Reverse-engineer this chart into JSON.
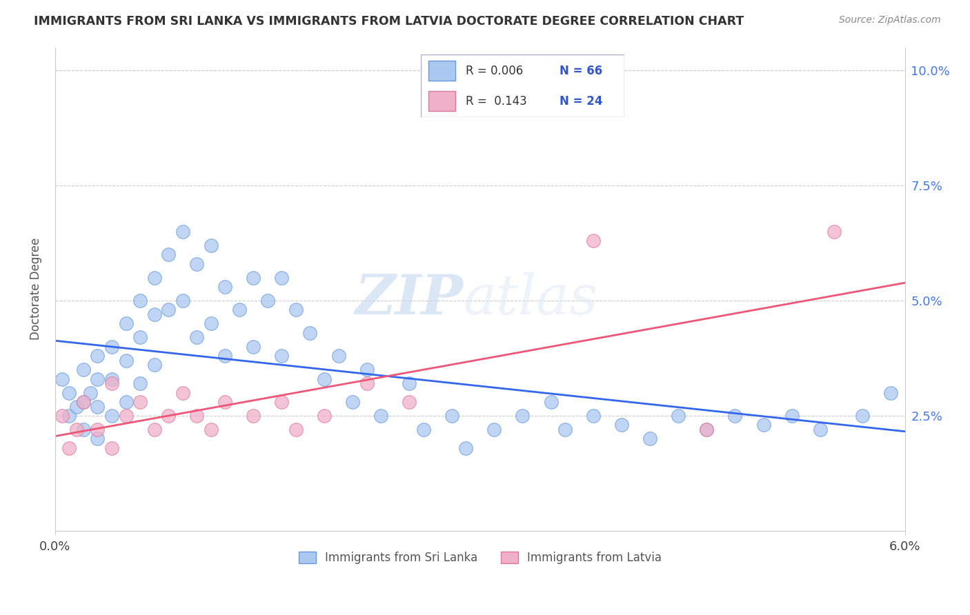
{
  "title": "IMMIGRANTS FROM SRI LANKA VS IMMIGRANTS FROM LATVIA DOCTORATE DEGREE CORRELATION CHART",
  "source_text": "Source: ZipAtlas.com",
  "ylabel": "Doctorate Degree",
  "ytick_values": [
    0.025,
    0.05,
    0.075,
    0.1
  ],
  "ytick_labels": [
    "2.5%",
    "5.0%",
    "7.5%",
    "10.0%"
  ],
  "xlim": [
    0.0,
    0.06
  ],
  "ylim": [
    0.0,
    0.105
  ],
  "sri_lanka_color": "#aac8f0",
  "sri_lanka_edge": "#6699dd",
  "latvia_color": "#f0b0c8",
  "latvia_edge": "#dd7799",
  "line_sri_lanka": "#3366ee",
  "line_latvia": "#ee5577",
  "R_sri_lanka": 0.006,
  "N_sri_lanka": 66,
  "R_latvia": 0.143,
  "N_latvia": 24,
  "watermark_zip": "ZIP",
  "watermark_atlas": "atlas",
  "sri_lanka_x": [
    0.0005,
    0.001,
    0.001,
    0.0015,
    0.002,
    0.002,
    0.002,
    0.0025,
    0.003,
    0.003,
    0.003,
    0.003,
    0.004,
    0.004,
    0.004,
    0.005,
    0.005,
    0.005,
    0.006,
    0.006,
    0.006,
    0.007,
    0.007,
    0.007,
    0.008,
    0.008,
    0.009,
    0.009,
    0.01,
    0.01,
    0.011,
    0.011,
    0.012,
    0.012,
    0.013,
    0.014,
    0.014,
    0.015,
    0.016,
    0.016,
    0.017,
    0.018,
    0.019,
    0.02,
    0.021,
    0.022,
    0.023,
    0.025,
    0.026,
    0.028,
    0.029,
    0.031,
    0.033,
    0.035,
    0.036,
    0.038,
    0.04,
    0.042,
    0.044,
    0.046,
    0.048,
    0.05,
    0.052,
    0.054,
    0.057,
    0.059
  ],
  "sri_lanka_y": [
    0.033,
    0.03,
    0.025,
    0.027,
    0.035,
    0.028,
    0.022,
    0.03,
    0.038,
    0.033,
    0.027,
    0.02,
    0.04,
    0.033,
    0.025,
    0.045,
    0.037,
    0.028,
    0.05,
    0.042,
    0.032,
    0.055,
    0.047,
    0.036,
    0.06,
    0.048,
    0.065,
    0.05,
    0.058,
    0.042,
    0.062,
    0.045,
    0.053,
    0.038,
    0.048,
    0.055,
    0.04,
    0.05,
    0.055,
    0.038,
    0.048,
    0.043,
    0.033,
    0.038,
    0.028,
    0.035,
    0.025,
    0.032,
    0.022,
    0.025,
    0.018,
    0.022,
    0.025,
    0.028,
    0.022,
    0.025,
    0.023,
    0.02,
    0.025,
    0.022,
    0.025,
    0.023,
    0.025,
    0.022,
    0.025,
    0.03
  ],
  "latvia_x": [
    0.0005,
    0.001,
    0.0015,
    0.002,
    0.003,
    0.004,
    0.004,
    0.005,
    0.006,
    0.007,
    0.008,
    0.009,
    0.01,
    0.011,
    0.012,
    0.014,
    0.016,
    0.017,
    0.019,
    0.022,
    0.025,
    0.038,
    0.046,
    0.055
  ],
  "latvia_y": [
    0.025,
    0.018,
    0.022,
    0.028,
    0.022,
    0.018,
    0.032,
    0.025,
    0.028,
    0.022,
    0.025,
    0.03,
    0.025,
    0.022,
    0.028,
    0.025,
    0.028,
    0.022,
    0.025,
    0.032,
    0.028,
    0.063,
    0.022,
    0.065
  ],
  "legend_R_sl_text": "R = 0.006",
  "legend_N_sl_text": "N = 66",
  "legend_R_lv_text": "R =  0.143",
  "legend_N_lv_text": "N = 24"
}
